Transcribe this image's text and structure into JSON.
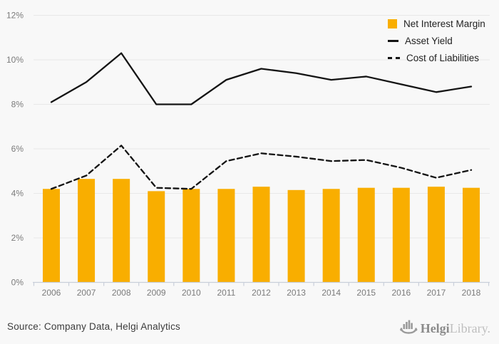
{
  "chart_data": {
    "type": "combo",
    "title": "",
    "categories": [
      "2006",
      "2007",
      "2008",
      "2009",
      "2010",
      "2011",
      "2012",
      "2013",
      "2014",
      "2015",
      "2016",
      "2017",
      "2018"
    ],
    "series": [
      {
        "name": "Net Interest Margin",
        "type": "bar",
        "style": "solid",
        "color": "#F9AE00",
        "values": [
          4.2,
          4.65,
          4.65,
          4.1,
          4.2,
          4.2,
          4.3,
          4.15,
          4.2,
          4.25,
          4.25,
          4.3,
          4.25
        ]
      },
      {
        "name": "Asset Yield",
        "type": "line",
        "style": "solid",
        "color": "#141414",
        "values": [
          8.1,
          9.0,
          10.3,
          8.0,
          8.0,
          9.1,
          9.6,
          9.4,
          9.1,
          9.25,
          8.9,
          8.55,
          8.8
        ]
      },
      {
        "name": "Cost of Liabilities",
        "type": "line",
        "style": "dashed",
        "color": "#141414",
        "values": [
          4.2,
          4.8,
          6.15,
          4.25,
          4.2,
          5.45,
          5.8,
          5.65,
          5.45,
          5.5,
          5.15,
          4.7,
          5.05
        ]
      }
    ],
    "xlabel": "",
    "ylabel": "",
    "ylim": [
      0,
      12
    ],
    "ytick_step": 2,
    "ytick_suffix": "%",
    "grid": true,
    "legend_position": "top-right"
  },
  "colors": {
    "background": "#F8F8F8",
    "grid": "#E8E8E8",
    "axis": "#C9CFDA",
    "tick_text": "#7B7B7B",
    "legend_text": "#222222",
    "bar": "#F9AE00",
    "line": "#141414"
  },
  "footer": {
    "source_note": "Source: Company Data, Helgi Analytics",
    "logo": {
      "icon": "helgi-ship-icon",
      "bold": "Helgi",
      "light": "Library."
    }
  }
}
